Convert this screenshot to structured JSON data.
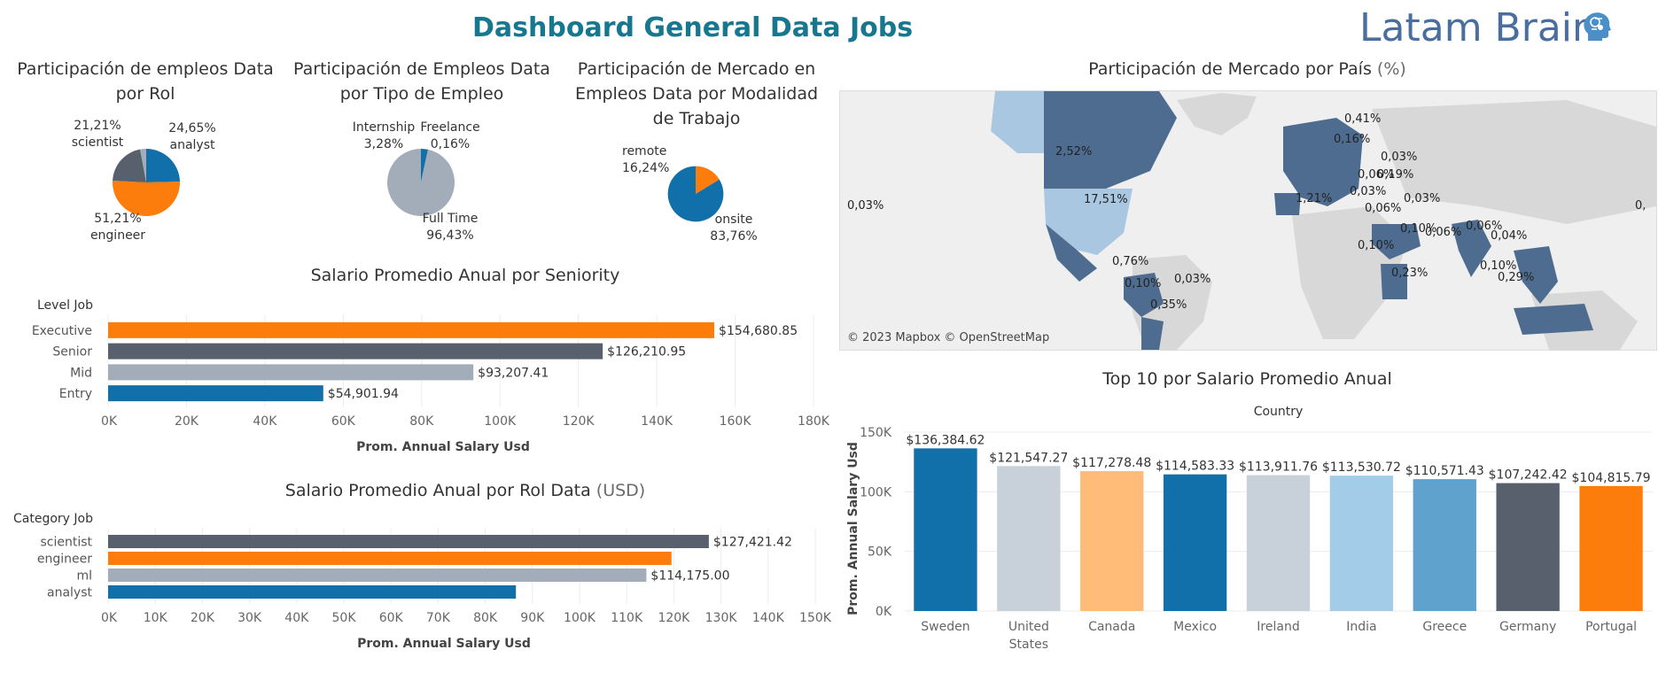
{
  "header": {
    "title": "Dashboard General Data Jobs",
    "brand": "Latam Brain",
    "brand_icon": "brain-head-icon"
  },
  "colors": {
    "blue": "#1170aa",
    "orange": "#fc7d0b",
    "dark": "#57606c",
    "gray": "#a3acb9",
    "lightgray": "#c8d0d9",
    "peach": "#ffbc79",
    "lightblue": "#a3cce9",
    "midblue": "#5fa2ce",
    "map_fill": "#4e6c8f",
    "map_light": "#a9c7e0"
  },
  "chart_data": [
    {
      "type": "pie",
      "title": "Participación de empleos Data por Rol",
      "slices": [
        {
          "label": "analyst",
          "value": 24.65,
          "text": "24,65%",
          "color": "#1170aa"
        },
        {
          "label": "engineer",
          "value": 51.21,
          "text": "51,21%",
          "color": "#fc7d0b"
        },
        {
          "label": "scientist",
          "value": 21.21,
          "text": "21,21%",
          "color": "#57606c"
        },
        {
          "label": "",
          "value": 2.93,
          "text": "",
          "color": "#a3acb9"
        }
      ]
    },
    {
      "type": "pie",
      "title": "Participación de Empleos Data por Tipo de Empleo",
      "slices": [
        {
          "label": "Internship",
          "value": 3.28,
          "text": "3,28%",
          "color": "#1170aa"
        },
        {
          "label": "Freelance",
          "value": 0.16,
          "text": "0,16%",
          "color": "#57606c"
        },
        {
          "label": "Full Time",
          "value": 96.43,
          "text": "96,43%",
          "color": "#a3acb9"
        }
      ]
    },
    {
      "type": "pie",
      "title": "Participación de Mercado en Empleos Data por Modalidad de Trabajo",
      "slices": [
        {
          "label": "remote",
          "value": 16.24,
          "text": "16,24%",
          "color": "#fc7d0b"
        },
        {
          "label": "onsite",
          "value": 83.76,
          "text": "83,76%",
          "color": "#1170aa"
        }
      ]
    },
    {
      "type": "bar",
      "orientation": "horizontal",
      "title": "Salario Promedio Anual por Seniority",
      "category_header": "Level Job",
      "xlabel": "Prom. Annual Salary Usd",
      "xlim": [
        0,
        180000
      ],
      "ticks": [
        "0K",
        "20K",
        "40K",
        "60K",
        "80K",
        "100K",
        "120K",
        "140K",
        "160K",
        "180K"
      ],
      "categories": [
        "Executive",
        "Senior",
        "Mid",
        "Entry"
      ],
      "values": [
        154680.85,
        126210.95,
        93207.41,
        54901.94
      ],
      "labels": [
        "$154,680.85",
        "$126,210.95",
        "$93,207.41",
        "$54,901.94"
      ],
      "colors": [
        "#fc7d0b",
        "#57606c",
        "#a3acb9",
        "#1170aa"
      ]
    },
    {
      "type": "bar",
      "orientation": "horizontal",
      "title": "Salario Promedio Anual por Rol Data",
      "title_unit": "(USD)",
      "category_header": "Category Job",
      "xlabel": "Prom. Annual Salary Usd",
      "xlim": [
        0,
        150000
      ],
      "ticks": [
        "0K",
        "10K",
        "20K",
        "30K",
        "40K",
        "50K",
        "60K",
        "70K",
        "80K",
        "90K",
        "100K",
        "110K",
        "120K",
        "130K",
        "140K",
        "150K"
      ],
      "categories": [
        "scientist",
        "engineer",
        "ml",
        "analyst"
      ],
      "values": [
        127421.42,
        119500,
        114175.0,
        86500
      ],
      "labels": [
        "$127,421.42",
        "",
        "$114,175.00",
        ""
      ],
      "colors": [
        "#57606c",
        "#fc7d0b",
        "#a3acb9",
        "#1170aa"
      ]
    },
    {
      "type": "bar",
      "title": "Top 10 por Salario Promedio Anual",
      "category_header": "Country",
      "ylabel": "Prom. Annual Salary Usd",
      "ylim": [
        0,
        150000
      ],
      "ticks": [
        "0K",
        "50K",
        "100K",
        "150K"
      ],
      "categories": [
        "Sweden",
        "United States",
        "Canada",
        "Mexico",
        "Ireland",
        "India",
        "Greece",
        "Germany",
        "Portugal"
      ],
      "values": [
        136384.62,
        121547.27,
        117278.48,
        114583.33,
        113911.76,
        113530.72,
        110571.43,
        107242.42,
        104815.79
      ],
      "labels": [
        "$136,384.62",
        "$121,547.27",
        "$117,278.48",
        "$114,583.33",
        "$113,911.76",
        "$113,530.72",
        "$110,571.43",
        "$107,242.42",
        "$104,815.79"
      ],
      "colors": [
        "#1170aa",
        "#c8d0d9",
        "#ffbc79",
        "#1170aa",
        "#c8d0d9",
        "#a3cce9",
        "#5fa2ce",
        "#57606c",
        "#fc7d0b"
      ]
    }
  ],
  "map": {
    "title": "Participación de Mercado por País",
    "title_unit": "(%)",
    "credit": "© 2023 Mapbox © OpenStreetMap",
    "labels": [
      "2,52%",
      "17,51%",
      "0,76%",
      "0,10%",
      "0,03%",
      "0,35%",
      "0,41%",
      "0,16%",
      "0,03%",
      "0,06%",
      "0,19%",
      "0,03%",
      "0,03%",
      "1,21%",
      "0,06%",
      "0,10%",
      "0,10%",
      "0,06%",
      "0,23%",
      "0,06%",
      "0,04%",
      "0,10%",
      "0,29%",
      "0,03%",
      "0,"
    ]
  }
}
